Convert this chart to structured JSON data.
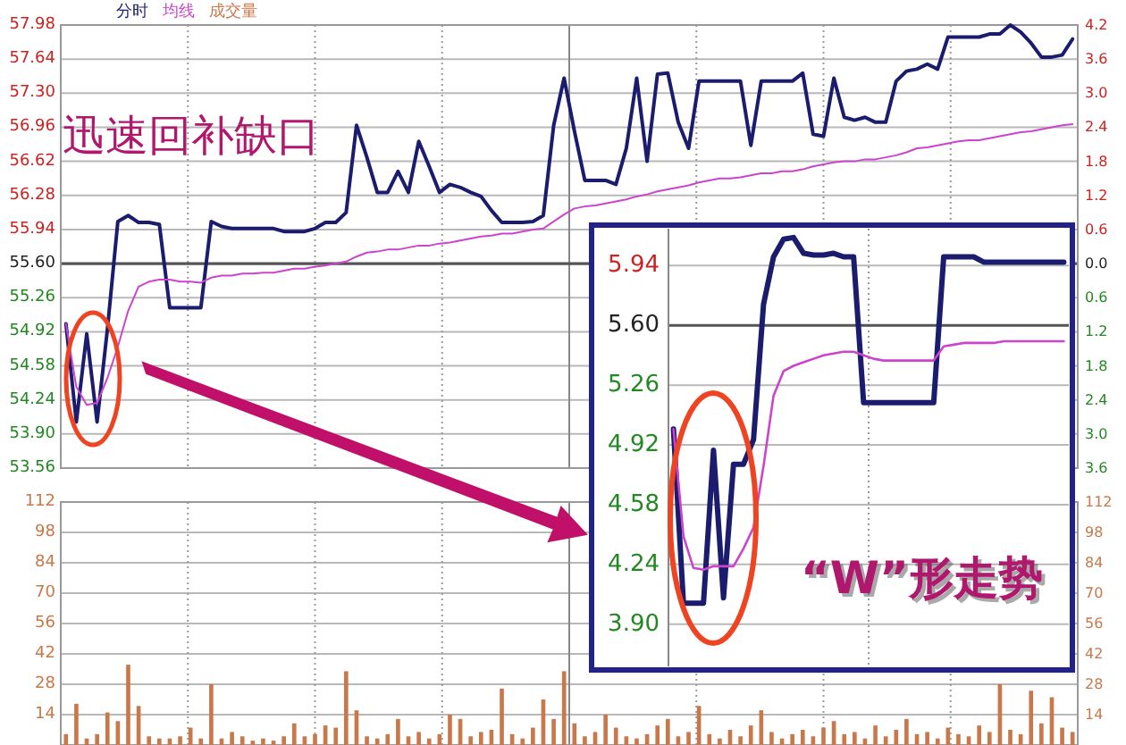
{
  "chart_data": [
    {
      "type": "line",
      "categories": [
        null,
        null,
        null,
        null,
        null,
        null,
        null,
        null,
        null,
        null,
        null,
        null,
        null,
        null,
        null,
        null,
        null,
        null,
        null,
        null,
        null,
        null,
        null,
        null,
        null,
        null,
        null,
        null,
        null,
        null,
        null,
        null,
        null,
        null,
        null,
        null,
        null,
        null,
        null,
        null,
        null,
        null,
        null,
        null,
        null,
        null,
        null,
        null,
        null,
        null,
        null,
        null,
        null,
        null,
        null,
        null,
        null,
        null,
        null,
        null,
        null,
        null,
        null,
        null,
        null,
        null,
        null,
        null,
        null,
        null,
        null,
        null,
        null,
        null,
        null,
        null,
        null,
        null,
        null,
        null,
        null,
        null,
        null,
        null,
        null,
        null,
        null,
        null,
        null,
        null,
        null,
        null,
        null,
        null,
        null,
        null,
        null,
        null
      ],
      "series": [
        {
          "name": "分时",
          "color": "#1c1c6e",
          "values": [
            55.0,
            54.02,
            54.9,
            54.02,
            54.95,
            56.02,
            56.08,
            56.01,
            56.01,
            55.99,
            55.16,
            55.16,
            55.16,
            55.16,
            56.02,
            55.97,
            55.95,
            55.95,
            55.95,
            55.95,
            55.95,
            55.92,
            55.92,
            55.92,
            55.95,
            56.01,
            56.01,
            56.11,
            56.98,
            56.66,
            56.31,
            56.31,
            56.52,
            56.31,
            56.82,
            56.57,
            56.31,
            56.39,
            56.36,
            56.31,
            56.27,
            56.13,
            56.01,
            56.01,
            56.01,
            56.02,
            56.08,
            56.98,
            57.45,
            56.92,
            56.43,
            56.43,
            56.43,
            56.39,
            56.75,
            57.45,
            56.62,
            57.49,
            57.5,
            57.01,
            56.75,
            57.42,
            57.42,
            57.42,
            57.42,
            57.42,
            56.78,
            57.42,
            57.42,
            57.42,
            57.42,
            57.5,
            56.89,
            56.87,
            57.45,
            57.06,
            57.03,
            57.06,
            57.01,
            57.01,
            57.42,
            57.52,
            57.54,
            57.59,
            57.54,
            57.86,
            57.86,
            57.86,
            57.86,
            57.89,
            57.89,
            57.98,
            57.91,
            57.8,
            57.66,
            57.66,
            57.68,
            57.84
          ]
        },
        {
          "name": "均线",
          "color": "#cc44cc",
          "values": [
            55.0,
            54.37,
            54.19,
            54.21,
            54.46,
            54.77,
            55.13,
            55.37,
            55.42,
            55.44,
            55.44,
            55.42,
            55.42,
            55.41,
            55.46,
            55.48,
            55.48,
            55.5,
            55.5,
            55.51,
            55.51,
            55.53,
            55.55,
            55.55,
            55.57,
            55.58,
            55.6,
            55.62,
            55.67,
            55.71,
            55.72,
            55.74,
            55.74,
            55.76,
            55.78,
            55.78,
            55.8,
            55.81,
            55.83,
            55.85,
            55.87,
            55.88,
            55.9,
            55.9,
            55.92,
            55.94,
            55.95,
            56.02,
            56.09,
            56.15,
            56.17,
            56.18,
            56.2,
            56.22,
            56.24,
            56.27,
            56.29,
            56.32,
            56.34,
            56.36,
            56.38,
            56.41,
            56.43,
            56.45,
            56.45,
            56.46,
            56.48,
            56.5,
            56.5,
            56.52,
            56.52,
            56.54,
            56.57,
            56.59,
            56.61,
            56.62,
            56.62,
            56.64,
            56.64,
            56.66,
            56.68,
            56.71,
            56.75,
            56.76,
            56.78,
            56.8,
            56.82,
            56.83,
            56.83,
            56.85,
            56.87,
            56.89,
            56.91,
            56.92,
            56.94,
            56.96,
            56.98,
            56.99
          ]
        }
      ],
      "ylim": [
        53.56,
        57.98
      ],
      "yticks": [
        53.56,
        {
          "value": 53.9,
          "label": "53.90"
        },
        54.24,
        54.58,
        54.92,
        55.26,
        {
          "value": 55.6,
          "label": "55.60"
        },
        55.94,
        56.28,
        56.62,
        56.96,
        {
          "value": 57.3,
          "label": "57.30"
        },
        57.64,
        57.98
      ],
      "y2lim": [
        -3.6,
        4.2
      ],
      "y2ticks": [
        {
          "value": -3.6,
          "label": "3.6"
        },
        {
          "value": -3,
          "label": "3.0"
        },
        {
          "value": -2.4,
          "label": "2.4"
        },
        {
          "value": -1.8,
          "label": "1.8"
        },
        {
          "value": -1.2,
          "label": "1.2"
        },
        {
          "value": -0.6,
          "label": "0.6"
        },
        {
          "value": 0,
          "label": "0.0"
        },
        0.6,
        1.2,
        1.8,
        2.4,
        {
          "value": 3,
          "label": "3.0"
        },
        3.6,
        4.2
      ],
      "ref_lines": [
        {
          "axis": "y",
          "value": 55.6,
          "color": "#555555"
        }
      ],
      "grid": true,
      "legend": "top left",
      "annotations": [
        "迅速回补缺口"
      ]
    },
    {
      "type": "bar",
      "categories": [
        null,
        null,
        null,
        null,
        null,
        null,
        null,
        null,
        null,
        null,
        null,
        null,
        null,
        null,
        null,
        null,
        null,
        null,
        null,
        null,
        null,
        null,
        null,
        null,
        null,
        null,
        null,
        null,
        null,
        null,
        null,
        null,
        null,
        null,
        null,
        null,
        null,
        null,
        null,
        null,
        null,
        null,
        null,
        null,
        null,
        null,
        null,
        null,
        null,
        null,
        null,
        null,
        null,
        null,
        null,
        null,
        null,
        null,
        null,
        null,
        null,
        null,
        null,
        null,
        null,
        null,
        null,
        null,
        null,
        null,
        null,
        null,
        null,
        null,
        null,
        null,
        null,
        null,
        null,
        null,
        null,
        null,
        null,
        null,
        null,
        null,
        null,
        null,
        null,
        null,
        null,
        null,
        null,
        null,
        null,
        null,
        null,
        null
      ],
      "series": [
        {
          "name": "成交量",
          "color": "#c8784a",
          "values": [
            5,
            19,
            3,
            5,
            15,
            11,
            37,
            18,
            4,
            3,
            3,
            4,
            8,
            3,
            28,
            3,
            6,
            4,
            2,
            3,
            2,
            4,
            10,
            4,
            5,
            9,
            8,
            34,
            16,
            4,
            3,
            5,
            12,
            4,
            6,
            3,
            5,
            14,
            12,
            4,
            6,
            7,
            26,
            5,
            3,
            8,
            21,
            12,
            34,
            10,
            4,
            6,
            14,
            8,
            4,
            3,
            5,
            9,
            12,
            4,
            6,
            18,
            5,
            3,
            7,
            4,
            9,
            16,
            6,
            3,
            5,
            7,
            4,
            8,
            11,
            5,
            6,
            3,
            9,
            4,
            7,
            12,
            5,
            6,
            3,
            8,
            5,
            4,
            9,
            6,
            28,
            7,
            5,
            25,
            10,
            22,
            8,
            6
          ]
        }
      ],
      "ylim": [
        0,
        112
      ],
      "yticks": [
        14,
        28,
        42,
        56,
        70,
        84,
        98,
        112
      ],
      "y2lim": [
        0,
        112
      ],
      "y2ticks": [
        14,
        28,
        42,
        56,
        70,
        84,
        98,
        112
      ],
      "grid": true,
      "legend": "top left"
    },
    {
      "type": "line",
      "categories": [
        null,
        null,
        null,
        null,
        null,
        null,
        null,
        null,
        null,
        null,
        null,
        null,
        null,
        null,
        null,
        null,
        null,
        null,
        null,
        null,
        null,
        null,
        null,
        null,
        null,
        null,
        null,
        null,
        null,
        null,
        null,
        null,
        null,
        null,
        null,
        null,
        null,
        null,
        null,
        null
      ],
      "series": [
        {
          "color": "#1c1c6e",
          "values": [
            5.01,
            4.02,
            4.02,
            4.02,
            4.89,
            4.05,
            4.81,
            4.81,
            4.95,
            5.72,
            5.99,
            6.09,
            6.1,
            6.01,
            6.0,
            6.0,
            6.01,
            5.99,
            5.99,
            5.16,
            5.16,
            5.16,
            5.16,
            5.16,
            5.16,
            5.16,
            5.16,
            5.99,
            5.99,
            5.99,
            5.99,
            5.96,
            5.96,
            5.96,
            5.96,
            5.96,
            5.96,
            5.96,
            5.96,
            5.96
          ]
        },
        {
          "color": "#cc44cc",
          "values": [
            5.01,
            4.4,
            4.22,
            4.21,
            4.23,
            4.23,
            4.23,
            4.33,
            4.45,
            4.8,
            5.2,
            5.34,
            5.37,
            5.39,
            5.41,
            5.43,
            5.44,
            5.45,
            5.45,
            5.43,
            5.41,
            5.4,
            5.4,
            5.4,
            5.4,
            5.4,
            5.4,
            5.48,
            5.49,
            5.5,
            5.5,
            5.5,
            5.5,
            5.51,
            5.51,
            5.51,
            5.51,
            5.51,
            5.51,
            5.51
          ]
        }
      ],
      "ylim": [
        3.66,
        6.15
      ],
      "yticks": [
        {
          "value": 3.9,
          "label": "3.90"
        },
        4.24,
        4.58,
        4.92,
        5.26,
        {
          "value": 5.6,
          "label": "5.60"
        },
        5.94
      ],
      "ref_lines": [
        {
          "axis": "y",
          "value": 5.6,
          "color": "#555555"
        }
      ],
      "grid": true,
      "annotations": [
        "“W”形走势"
      ]
    }
  ]
}
